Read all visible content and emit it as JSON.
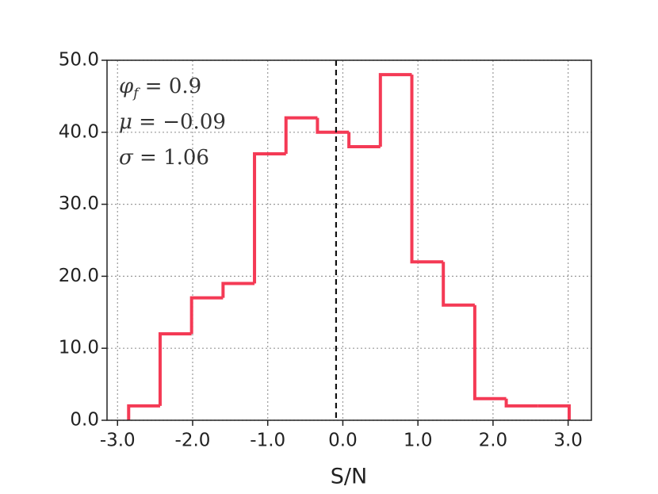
{
  "chart_data": {
    "type": "histogram",
    "xlabel": "S/N",
    "bins": [
      -2.852,
      -2.433,
      -2.014,
      -1.595,
      -1.176,
      -0.757,
      -0.338,
      0.081,
      0.5,
      0.919,
      1.338,
      1.757,
      2.176,
      2.595,
      3.014
    ],
    "values": [
      2,
      12,
      17,
      19,
      37,
      42,
      40,
      38,
      48,
      22,
      16,
      3,
      2,
      2
    ],
    "color": "#f43a55",
    "xlim": [
      -3.14,
      3.31
    ],
    "ylim": [
      0,
      50
    ],
    "xticks": [
      {
        "value": -3,
        "label": "-3.0"
      },
      {
        "value": -2,
        "label": "-2.0"
      },
      {
        "value": -1,
        "label": "-1.0"
      },
      {
        "value": 0,
        "label": "0.0"
      },
      {
        "value": 1,
        "label": "1.0"
      },
      {
        "value": 2,
        "label": "2.0"
      },
      {
        "value": 3,
        "label": "3.0"
      }
    ],
    "yticks": [
      {
        "value": 0,
        "label": "0.0"
      },
      {
        "value": 10,
        "label": "10.0"
      },
      {
        "value": 20,
        "label": "20.0"
      },
      {
        "value": 30,
        "label": "30.0"
      },
      {
        "value": 40,
        "label": "40.0"
      },
      {
        "value": 50,
        "label": "50.0"
      }
    ],
    "grid": true,
    "vline": -0.09,
    "annotations": [
      {
        "symbol": "φ",
        "subscript": "f",
        "text": " = 0.9"
      },
      {
        "symbol": "μ",
        "text": " = −0.09"
      },
      {
        "symbol": "σ",
        "text": " = 1.06"
      }
    ]
  }
}
